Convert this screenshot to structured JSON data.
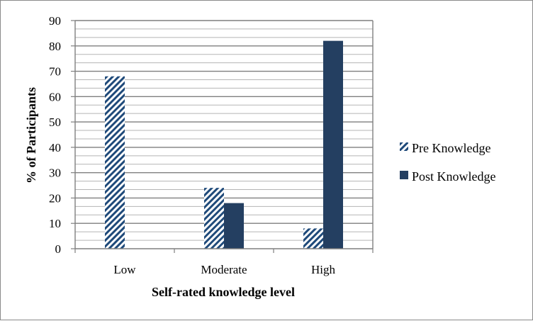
{
  "chart_data": {
    "type": "bar",
    "title": "",
    "xlabel": "Self-rated knowledge level",
    "ylabel": "% of Participants",
    "categories": [
      "Low",
      "Moderate",
      "High"
    ],
    "ylim": [
      0,
      90
    ],
    "yticks": [
      0,
      10,
      20,
      30,
      40,
      50,
      60,
      70,
      80,
      90
    ],
    "grid": true,
    "legend_position": "right",
    "series": [
      {
        "name": "Pre Knowledge",
        "values": [
          68,
          24,
          8
        ],
        "color": "#a7c0df",
        "pattern": "diagonal-hatch"
      },
      {
        "name": "Post Knowledge",
        "values": [
          0,
          18,
          82
        ],
        "color": "#243f61",
        "pattern": "solid"
      }
    ]
  }
}
